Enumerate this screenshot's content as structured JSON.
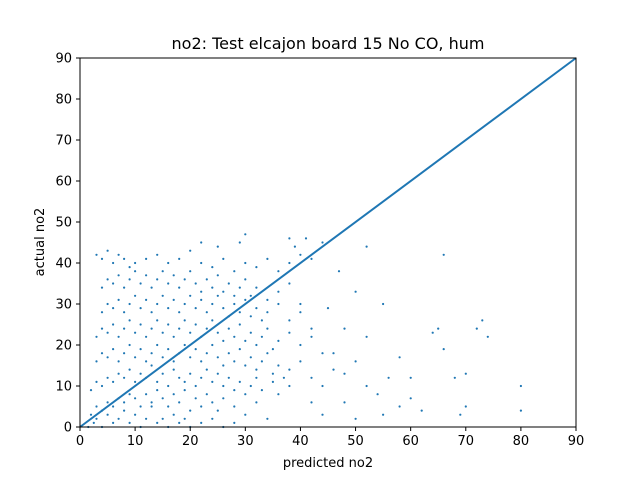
{
  "chart_data": {
    "type": "scatter",
    "title": "no2: Test elcajon board 15 No CO, hum",
    "xlabel": "predicted no2",
    "ylabel": "actual no2",
    "xlim": [
      0,
      90
    ],
    "ylim": [
      0,
      90
    ],
    "xticks": [
      "0",
      "10",
      "20",
      "30",
      "40",
      "50",
      "60",
      "70",
      "80",
      "90"
    ],
    "yticks": [
      "0",
      "10",
      "20",
      "30",
      "40",
      "50",
      "60",
      "70",
      "80",
      "90"
    ],
    "grid": false,
    "color": "#1f77b4",
    "reference_line": {
      "x": [
        0,
        90
      ],
      "y": [
        0,
        90
      ]
    },
    "series": [
      {
        "points": [
          [
            1.5,
            0
          ],
          [
            2.5,
            1
          ],
          [
            3,
            2
          ],
          [
            4,
            0
          ],
          [
            5,
            3
          ],
          [
            6,
            1
          ],
          [
            7,
            2
          ],
          [
            8,
            4
          ],
          [
            9,
            1
          ],
          [
            10,
            3
          ],
          [
            11,
            0
          ],
          [
            12,
            2
          ],
          [
            13,
            5
          ],
          [
            14,
            1
          ],
          [
            15,
            2
          ],
          [
            16,
            0
          ],
          [
            17,
            3
          ],
          [
            18,
            1
          ],
          [
            19,
            2
          ],
          [
            20,
            0
          ],
          [
            22,
            1
          ],
          [
            24,
            2
          ],
          [
            26,
            0
          ],
          [
            28,
            1
          ],
          [
            2,
            3
          ],
          [
            3,
            5
          ],
          [
            4,
            4
          ],
          [
            5,
            6
          ],
          [
            6,
            5
          ],
          [
            7,
            7
          ],
          [
            8,
            6
          ],
          [
            9,
            8
          ],
          [
            10,
            7
          ],
          [
            11,
            5
          ],
          [
            12,
            8
          ],
          [
            13,
            6
          ],
          [
            14,
            9
          ],
          [
            15,
            7
          ],
          [
            16,
            5
          ],
          [
            17,
            8
          ],
          [
            18,
            6
          ],
          [
            19,
            9
          ],
          [
            20,
            4
          ],
          [
            21,
            7
          ],
          [
            22,
            5
          ],
          [
            23,
            8
          ],
          [
            24,
            6
          ],
          [
            25,
            4
          ],
          [
            26,
            7
          ],
          [
            28,
            5
          ],
          [
            30,
            3
          ],
          [
            32,
            6
          ],
          [
            34,
            2
          ],
          [
            2,
            9
          ],
          [
            3,
            11
          ],
          [
            4,
            10
          ],
          [
            5,
            12
          ],
          [
            6,
            11
          ],
          [
            7,
            13
          ],
          [
            8,
            12
          ],
          [
            9,
            14
          ],
          [
            10,
            11
          ],
          [
            11,
            13
          ],
          [
            12,
            12
          ],
          [
            13,
            15
          ],
          [
            14,
            11
          ],
          [
            15,
            13
          ],
          [
            16,
            10
          ],
          [
            17,
            14
          ],
          [
            18,
            12
          ],
          [
            19,
            11
          ],
          [
            20,
            13
          ],
          [
            21,
            10
          ],
          [
            22,
            12
          ],
          [
            23,
            14
          ],
          [
            24,
            11
          ],
          [
            25,
            13
          ],
          [
            26,
            10
          ],
          [
            27,
            12
          ],
          [
            28,
            9
          ],
          [
            29,
            11
          ],
          [
            30,
            8
          ],
          [
            31,
            10
          ],
          [
            32,
            12
          ],
          [
            33,
            9
          ],
          [
            35,
            11
          ],
          [
            36,
            8
          ],
          [
            38,
            10
          ],
          [
            3,
            16
          ],
          [
            4,
            18
          ],
          [
            5,
            17
          ],
          [
            6,
            19
          ],
          [
            7,
            16
          ],
          [
            8,
            18
          ],
          [
            9,
            20
          ],
          [
            10,
            17
          ],
          [
            11,
            19
          ],
          [
            12,
            16
          ],
          [
            13,
            18
          ],
          [
            14,
            20
          ],
          [
            15,
            17
          ],
          [
            16,
            19
          ],
          [
            17,
            16
          ],
          [
            18,
            18
          ],
          [
            19,
            20
          ],
          [
            20,
            17
          ],
          [
            21,
            19
          ],
          [
            22,
            16
          ],
          [
            23,
            18
          ],
          [
            24,
            20
          ],
          [
            25,
            17
          ],
          [
            26,
            15
          ],
          [
            27,
            18
          ],
          [
            28,
            16
          ],
          [
            29,
            19
          ],
          [
            30,
            15
          ],
          [
            31,
            17
          ],
          [
            32,
            14
          ],
          [
            33,
            16
          ],
          [
            34,
            18
          ],
          [
            35,
            13
          ],
          [
            36,
            15
          ],
          [
            37,
            12
          ],
          [
            38,
            14
          ],
          [
            40,
            16
          ],
          [
            42,
            12
          ],
          [
            3,
            22
          ],
          [
            4,
            24
          ],
          [
            5,
            23
          ],
          [
            6,
            25
          ],
          [
            7,
            22
          ],
          [
            8,
            24
          ],
          [
            9,
            26
          ],
          [
            10,
            23
          ],
          [
            11,
            25
          ],
          [
            12,
            22
          ],
          [
            13,
            24
          ],
          [
            14,
            26
          ],
          [
            15,
            23
          ],
          [
            16,
            25
          ],
          [
            17,
            22
          ],
          [
            18,
            24
          ],
          [
            19,
            26
          ],
          [
            20,
            23
          ],
          [
            21,
            25
          ],
          [
            22,
            22
          ],
          [
            23,
            24
          ],
          [
            24,
            26
          ],
          [
            25,
            23
          ],
          [
            26,
            21
          ],
          [
            27,
            24
          ],
          [
            28,
            22
          ],
          [
            29,
            25
          ],
          [
            30,
            21
          ],
          [
            31,
            23
          ],
          [
            32,
            20
          ],
          [
            33,
            22
          ],
          [
            34,
            24
          ],
          [
            35,
            19
          ],
          [
            36,
            21
          ],
          [
            38,
            23
          ],
          [
            40,
            20
          ],
          [
            42,
            22
          ],
          [
            44,
            18
          ],
          [
            4,
            28
          ],
          [
            5,
            30
          ],
          [
            6,
            29
          ],
          [
            7,
            31
          ],
          [
            8,
            28
          ],
          [
            9,
            30
          ],
          [
            10,
            32
          ],
          [
            11,
            29
          ],
          [
            12,
            31
          ],
          [
            13,
            28
          ],
          [
            14,
            30
          ],
          [
            15,
            32
          ],
          [
            16,
            29
          ],
          [
            17,
            31
          ],
          [
            18,
            28
          ],
          [
            19,
            30
          ],
          [
            20,
            32
          ],
          [
            21,
            29
          ],
          [
            22,
            31
          ],
          [
            23,
            28
          ],
          [
            24,
            30
          ],
          [
            25,
            32
          ],
          [
            26,
            29
          ],
          [
            27,
            27
          ],
          [
            28,
            30
          ],
          [
            29,
            28
          ],
          [
            30,
            31
          ],
          [
            31,
            27
          ],
          [
            32,
            29
          ],
          [
            33,
            26
          ],
          [
            34,
            28
          ],
          [
            36,
            30
          ],
          [
            38,
            26
          ],
          [
            40,
            28
          ],
          [
            42,
            24
          ],
          [
            4,
            34
          ],
          [
            5,
            36
          ],
          [
            6,
            35
          ],
          [
            7,
            37
          ],
          [
            8,
            34
          ],
          [
            9,
            36
          ],
          [
            10,
            38
          ],
          [
            11,
            35
          ],
          [
            12,
            37
          ],
          [
            13,
            34
          ],
          [
            14,
            36
          ],
          [
            15,
            38
          ],
          [
            16,
            35
          ],
          [
            17,
            37
          ],
          [
            18,
            34
          ],
          [
            19,
            36
          ],
          [
            20,
            38
          ],
          [
            21,
            35
          ],
          [
            22,
            33
          ],
          [
            23,
            36
          ],
          [
            24,
            34
          ],
          [
            25,
            37
          ],
          [
            26,
            33
          ],
          [
            27,
            35
          ],
          [
            28,
            32
          ],
          [
            29,
            34
          ],
          [
            30,
            36
          ],
          [
            31,
            32
          ],
          [
            32,
            34
          ],
          [
            34,
            31
          ],
          [
            36,
            33
          ],
          [
            38,
            35
          ],
          [
            40,
            30
          ],
          [
            3,
            42
          ],
          [
            4,
            41
          ],
          [
            5,
            43
          ],
          [
            6,
            40
          ],
          [
            7,
            42
          ],
          [
            8,
            41
          ],
          [
            9,
            39
          ],
          [
            10,
            40
          ],
          [
            12,
            41
          ],
          [
            14,
            42
          ],
          [
            16,
            40
          ],
          [
            18,
            41
          ],
          [
            20,
            43
          ],
          [
            22,
            40
          ],
          [
            24,
            39
          ],
          [
            26,
            41
          ],
          [
            28,
            38
          ],
          [
            30,
            40
          ],
          [
            32,
            39
          ],
          [
            34,
            41
          ],
          [
            36,
            38
          ],
          [
            38,
            40
          ],
          [
            40,
            42
          ],
          [
            42,
            41
          ],
          [
            39,
            44
          ],
          [
            41,
            46
          ],
          [
            44,
            45
          ],
          [
            22,
            45
          ],
          [
            30,
            47
          ],
          [
            38,
            46
          ],
          [
            29,
            45
          ],
          [
            25,
            44
          ],
          [
            52,
            44
          ],
          [
            66,
            42
          ],
          [
            47,
            38
          ],
          [
            50,
            33
          ],
          [
            45,
            29
          ],
          [
            55,
            30
          ],
          [
            48,
            24
          ],
          [
            52,
            22
          ],
          [
            46,
            18
          ],
          [
            50,
            16
          ],
          [
            56,
            12
          ],
          [
            54,
            8
          ],
          [
            48,
            13
          ],
          [
            44,
            10
          ],
          [
            58,
            17
          ],
          [
            60,
            12
          ],
          [
            62,
            4
          ],
          [
            64,
            23
          ],
          [
            65,
            24
          ],
          [
            66,
            19
          ],
          [
            68,
            12
          ],
          [
            70,
            5
          ],
          [
            69,
            3
          ],
          [
            70,
            13
          ],
          [
            72,
            24
          ],
          [
            73,
            26
          ],
          [
            74,
            22
          ],
          [
            80,
            10
          ],
          [
            80,
            4
          ],
          [
            48,
            6
          ],
          [
            52,
            10
          ],
          [
            60,
            7
          ],
          [
            50,
            2
          ],
          [
            55,
            3
          ],
          [
            58,
            5
          ],
          [
            42,
            6
          ],
          [
            44,
            3
          ],
          [
            46,
            14
          ]
        ]
      }
    ]
  }
}
